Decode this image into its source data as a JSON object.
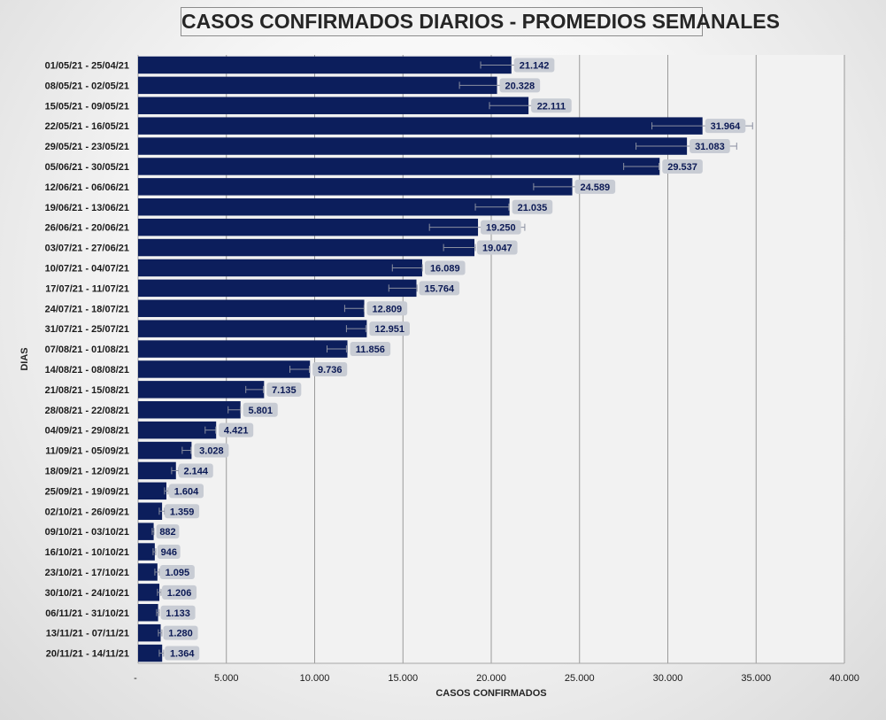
{
  "chart_data": {
    "type": "bar",
    "orientation": "horizontal",
    "title": "CASOS CONFIRMADOS DIARIOS - PROMEDIOS SEMANALES",
    "xlabel": "CASOS CONFIRMADOS",
    "ylabel": "DIAS",
    "xlim": [
      0,
      40000
    ],
    "xticks": [
      "-",
      "5.000",
      "10.000",
      "15.000",
      "20.000",
      "25.000",
      "30.000",
      "35.000",
      "40.000"
    ],
    "grid": true,
    "bar_color": "#0c1e5c",
    "label_bg": "#c8ccd4",
    "categories": [
      "01/05/21 - 25/04/21",
      "08/05/21 - 02/05/21",
      "15/05/21 - 09/05/21",
      "22/05/21 - 16/05/21",
      "29/05/21 - 23/05/21",
      "05/06/21 - 30/05/21",
      "12/06/21 - 06/06/21",
      "19/06/21 - 13/06/21",
      "26/06/21 - 20/06/21",
      "03/07/21 - 27/06/21",
      "10/07/21 - 04/07/21",
      "17/07/21 - 11/07/21",
      "24/07/21 - 18/07/21",
      "31/07/21 - 25/07/21",
      "07/08/21 - 01/08/21",
      "14/08/21 - 08/08/21",
      "21/08/21 - 15/08/21",
      "28/08/21 - 22/08/21",
      "04/09/21 - 29/08/21",
      "11/09/21 - 05/09/21",
      "18/09/21 - 12/09/21",
      "25/09/21 - 19/09/21",
      "02/10/21 - 26/09/21",
      "09/10/21 - 03/10/21",
      "16/10/21 - 10/10/21",
      "23/10/21 - 17/10/21",
      "30/10/21 - 24/10/21",
      "06/11/21 - 31/10/21",
      "13/11/21 - 07/11/21",
      "20/11/21 - 14/11/21"
    ],
    "values": [
      21142,
      20328,
      22111,
      31964,
      31083,
      29537,
      24589,
      21035,
      19250,
      19047,
      16089,
      15764,
      12809,
      12951,
      11856,
      9736,
      7135,
      5801,
      4421,
      3028,
      2144,
      1604,
      1359,
      882,
      946,
      1095,
      1206,
      1133,
      1280,
      1364
    ],
    "value_labels": [
      "21.142",
      "20.328",
      "22.111",
      "31.964",
      "31.083",
      "29.537",
      "24.589",
      "21.035",
      "19.250",
      "19.047",
      "16.089",
      "15.764",
      "12.809",
      "12.951",
      "11.856",
      "9.736",
      "7.135",
      "5.801",
      "4.421",
      "3.028",
      "2.144",
      "1.604",
      "1.359",
      "882",
      "946",
      "1.095",
      "1.206",
      "1.133",
      "1.280",
      "1.364"
    ],
    "error_bars": [
      [
        19400,
        21800
      ],
      [
        18200,
        20700
      ],
      [
        19900,
        22400
      ],
      [
        29100,
        34800
      ],
      [
        28200,
        33900
      ],
      [
        27500,
        29500
      ],
      [
        22400,
        26800
      ],
      [
        19100,
        21000
      ],
      [
        16500,
        21900
      ],
      [
        17300,
        19100
      ],
      [
        14400,
        16100
      ],
      [
        14200,
        15800
      ],
      [
        11700,
        12800
      ],
      [
        11800,
        12900
      ],
      [
        10700,
        11800
      ],
      [
        8600,
        9700
      ],
      [
        6100,
        7100
      ],
      [
        5100,
        5800
      ],
      [
        3800,
        4400
      ],
      [
        2500,
        3000
      ],
      [
        1900,
        2300
      ],
      [
        1500,
        1700
      ],
      [
        1200,
        1500
      ],
      [
        800,
        900
      ],
      [
        850,
        1000
      ],
      [
        950,
        1200
      ],
      [
        1100,
        1300
      ],
      [
        1050,
        1200
      ],
      [
        1150,
        1350
      ],
      [
        1200,
        1450
      ]
    ]
  }
}
